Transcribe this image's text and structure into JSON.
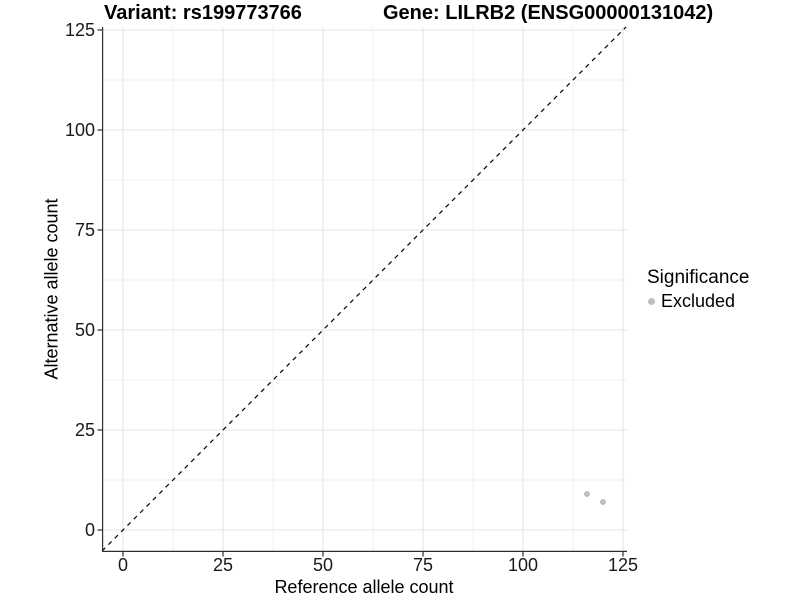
{
  "chart_data": {
    "type": "scatter",
    "title_left": "Variant: rs199773766",
    "title_right": "Gene: LILRB2 (ENSG00000131042)",
    "xlabel": "Reference allele count",
    "ylabel": "Alternative allele count",
    "xticks": [
      0,
      25,
      50,
      75,
      100,
      125
    ],
    "yticks": [
      0,
      25,
      50,
      75,
      100,
      125
    ],
    "xlim": [
      -5.25,
      126.0
    ],
    "ylim": [
      -5.5,
      125.75
    ],
    "grid": "major+minor",
    "minor_gridlines_at_midpoints": true,
    "identity_line": {
      "equation": "y = x",
      "style": "dashed",
      "color": "#000000"
    },
    "series": [
      {
        "name": "Excluded",
        "color": "#bfbfbf",
        "points": [
          {
            "x": 116,
            "y": 9
          },
          {
            "x": 120,
            "y": 7
          }
        ]
      }
    ],
    "legend": {
      "title": "Significance",
      "position": "right",
      "items": [
        {
          "label": "Excluded",
          "color": "#bfbfbf"
        }
      ]
    }
  },
  "colors": {
    "background": "#ffffff",
    "axis_line": "#2e2e2e",
    "tick_mark": "#2e2e2e",
    "major_grid": "#e5e5e5",
    "minor_grid": "#f1f1f1",
    "tick_text": "#1a1a1a",
    "point": "#bfbfbf"
  }
}
